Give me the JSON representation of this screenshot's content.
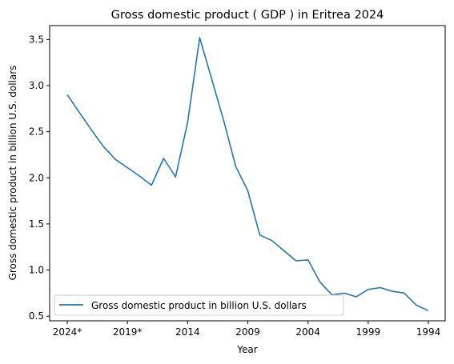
{
  "chart_data": {
    "type": "line",
    "title": "Gross domestic product ( GDP ) in Eritrea 2024",
    "xlabel": "Year",
    "ylabel": "Gross domestic product in billion U.S. dollars",
    "x": [
      "2024*",
      "2023*",
      "2022*",
      "2021*",
      "2020*",
      "2019*",
      "2018",
      "2017",
      "2016",
      "2015",
      "2014",
      "2013",
      "2012",
      "2011",
      "2010",
      "2009",
      "2008",
      "2007",
      "2006",
      "2005",
      "2004",
      "2003",
      "2002",
      "2001",
      "2000",
      "1999",
      "1998",
      "1997",
      "1996",
      "1995",
      "1994"
    ],
    "xticks": [
      "2024*",
      "2019*",
      "2014",
      "2009",
      "2004",
      "1999",
      "1994"
    ],
    "ylim": [
      0.45,
      3.65
    ],
    "yticks": [
      "0.5",
      "1.0",
      "1.5",
      "2.0",
      "2.5",
      "3.0",
      "3.5"
    ],
    "grid": false,
    "legend": "lower-left",
    "series": [
      {
        "name": "Gross domestic product in billion U.S. dollars",
        "color": "#1f77b4",
        "values": [
          2.9,
          2.71,
          2.52,
          2.34,
          2.2,
          2.11,
          2.02,
          1.92,
          2.21,
          2.01,
          2.6,
          3.52,
          3.07,
          2.62,
          2.12,
          1.86,
          1.38,
          1.32,
          1.21,
          1.1,
          1.11,
          0.87,
          0.73,
          0.75,
          0.71,
          0.79,
          0.81,
          0.77,
          0.75,
          0.62,
          0.56
        ]
      }
    ]
  }
}
